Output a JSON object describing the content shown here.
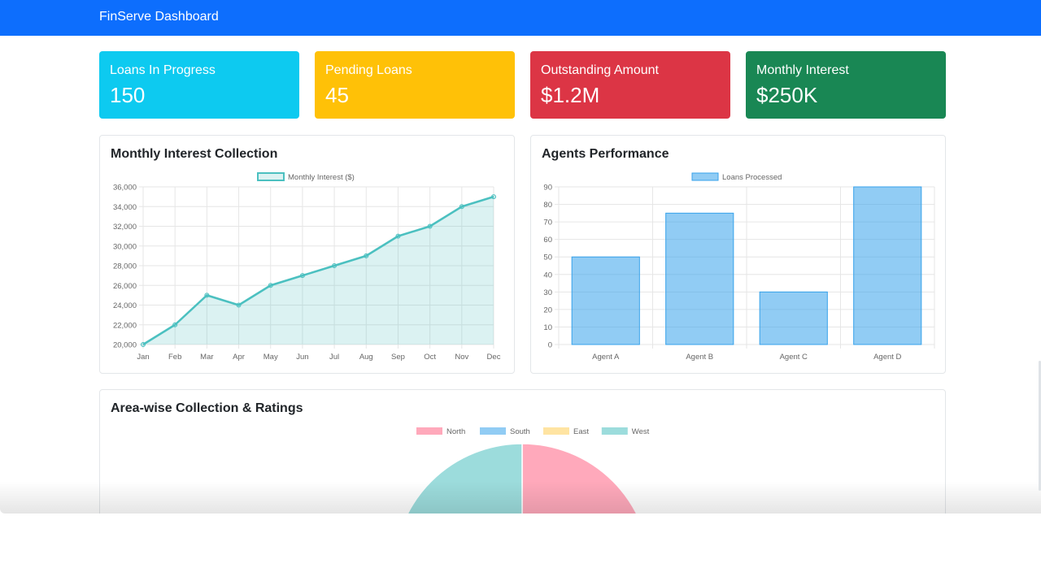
{
  "app": {
    "brand": "FinServe Dashboard"
  },
  "colors": {
    "primary": "#0d6efd",
    "info": "#0dcaf0",
    "warning": "#ffc107",
    "danger": "#dc3545",
    "success": "#198754"
  },
  "stats": [
    {
      "label": "Loans In Progress",
      "value": "150",
      "color": "#0dcaf0"
    },
    {
      "label": "Pending Loans",
      "value": "45",
      "color": "#ffc107"
    },
    {
      "label": "Outstanding Amount",
      "value": "$1.2M",
      "color": "#dc3545"
    },
    {
      "label": "Monthly Interest",
      "value": "$250K",
      "color": "#198754"
    }
  ],
  "panels": {
    "line": {
      "title": "Monthly Interest Collection"
    },
    "bar": {
      "title": "Agents Performance"
    },
    "pie": {
      "title": "Area-wise Collection & Ratings"
    }
  },
  "chart_data": [
    {
      "type": "line",
      "title": "Monthly Interest Collection",
      "series": [
        {
          "name": "Monthly Interest ($)",
          "values": [
            20000,
            22000,
            25000,
            24000,
            26000,
            27000,
            28000,
            29000,
            31000,
            32000,
            34000,
            35000
          ],
          "color": "#4bc0c0"
        }
      ],
      "categories": [
        "Jan",
        "Feb",
        "Mar",
        "Apr",
        "May",
        "Jun",
        "Jul",
        "Aug",
        "Sep",
        "Oct",
        "Nov",
        "Dec"
      ],
      "y_ticks": [
        "20,000",
        "22,000",
        "24,000",
        "26,000",
        "28,000",
        "30,000",
        "32,000",
        "34,000",
        "36,000"
      ],
      "ylim": [
        20000,
        36000
      ],
      "grid": true,
      "legend": "top",
      "fill": true
    },
    {
      "type": "bar",
      "title": "Agents Performance",
      "series": [
        {
          "name": "Loans Processed",
          "values": [
            50,
            75,
            30,
            90
          ],
          "color": "#36a2eb"
        }
      ],
      "categories": [
        "Agent A",
        "Agent B",
        "Agent C",
        "Agent D"
      ],
      "y_ticks": [
        "0",
        "10",
        "20",
        "30",
        "40",
        "50",
        "60",
        "70",
        "80",
        "90"
      ],
      "ylim": [
        0,
        90
      ],
      "grid": true,
      "legend": "top"
    },
    {
      "type": "pie",
      "title": "Area-wise Collection & Ratings",
      "categories": [
        "North",
        "South",
        "East",
        "West"
      ],
      "colors": [
        "#ff6384",
        "#36a2eb",
        "#ffcd56",
        "#4bc0c0"
      ],
      "visible_slices": [
        {
          "name": "North",
          "start_deg": 0,
          "end_deg": 90
        },
        {
          "name": "West",
          "start_deg": 270,
          "end_deg": 360
        }
      ],
      "legend": "top"
    }
  ]
}
